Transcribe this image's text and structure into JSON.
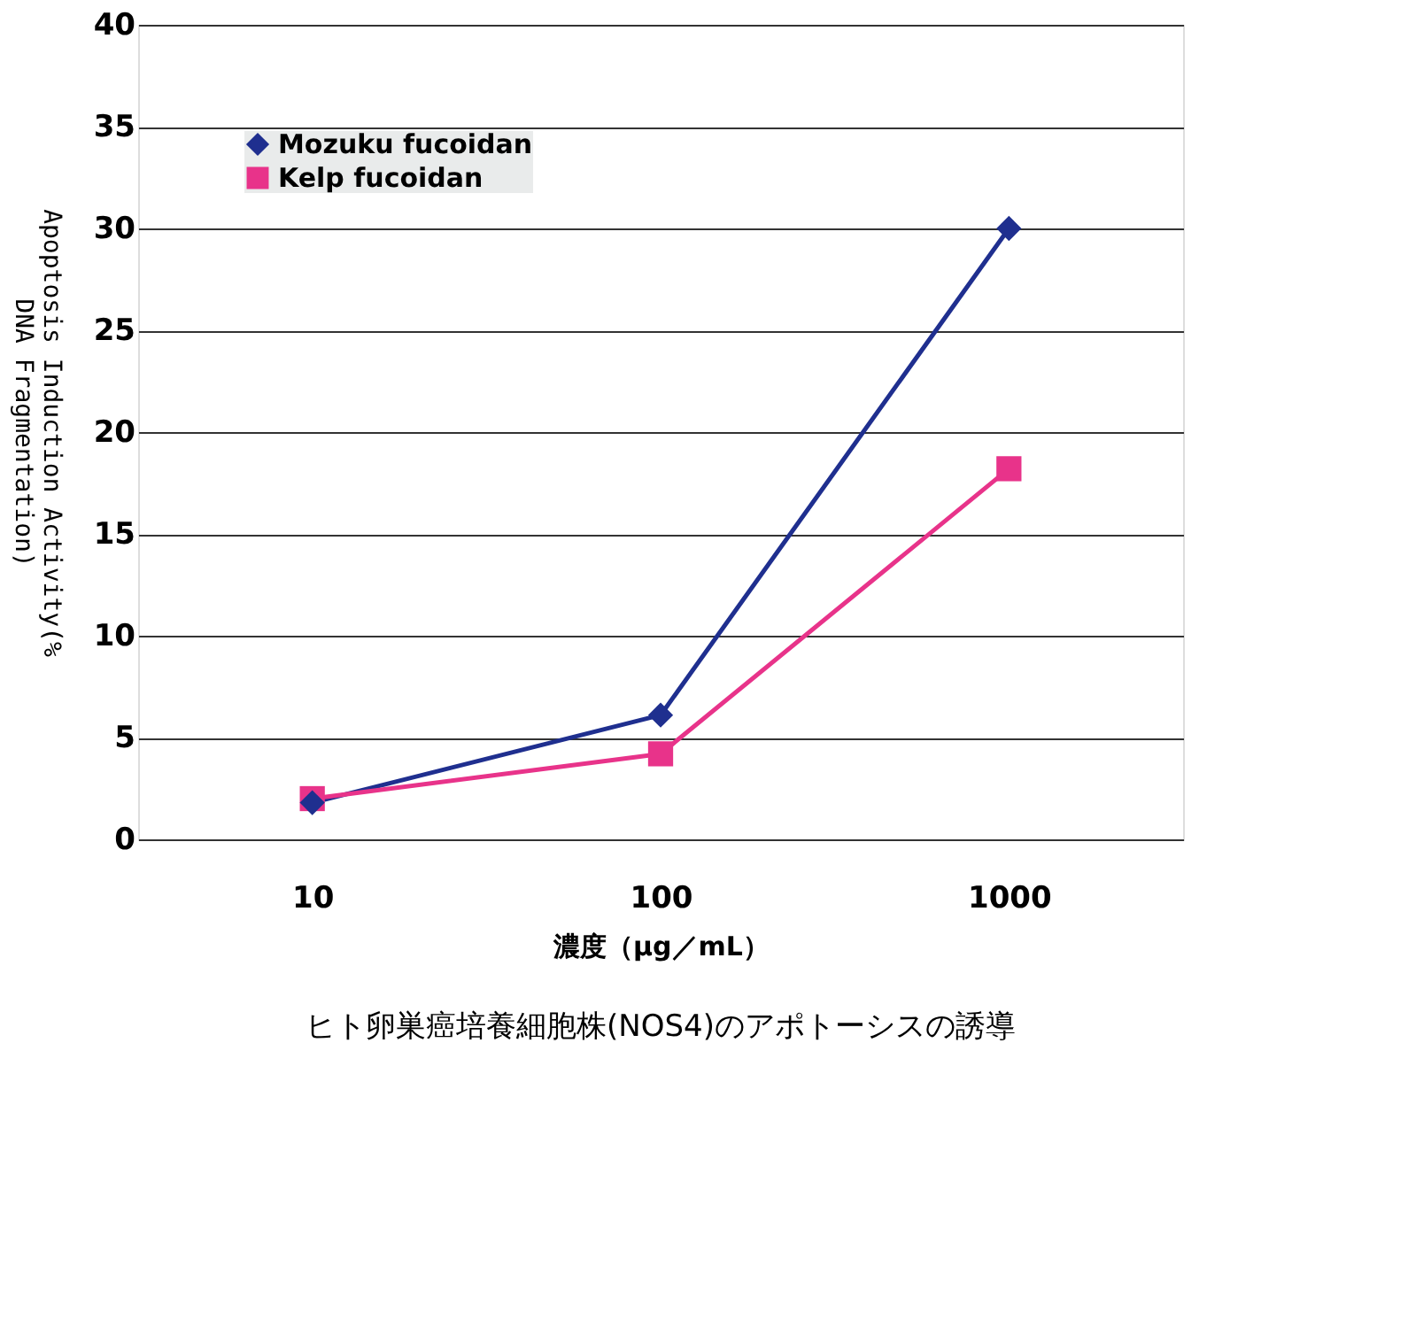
{
  "chart_data": {
    "type": "line",
    "title": "ヒト卵巣癌培養細胞株(NOS4)のアポトーシスの誘導",
    "xlabel": "濃度（μg／mL）",
    "ylabel": "Apoptosis Induction Activity(%\nDNA Fragmentation)",
    "categories": [
      "10",
      "100",
      "1000"
    ],
    "series": [
      {
        "name": "Mozuku fucoidan",
        "color": "#1f2f8f",
        "marker": "diamond",
        "values": [
          1.8,
          6.1,
          30
        ]
      },
      {
        "name": "Kelp fucoidan",
        "color": "#e8338a",
        "marker": "square",
        "values": [
          2,
          4.2,
          18.2
        ]
      }
    ],
    "ylim": [
      0,
      40
    ],
    "yticks": [
      0,
      5,
      10,
      15,
      20,
      25,
      30,
      35,
      40
    ],
    "grid": "y",
    "legend": "top left",
    "line_style": "solid"
  }
}
